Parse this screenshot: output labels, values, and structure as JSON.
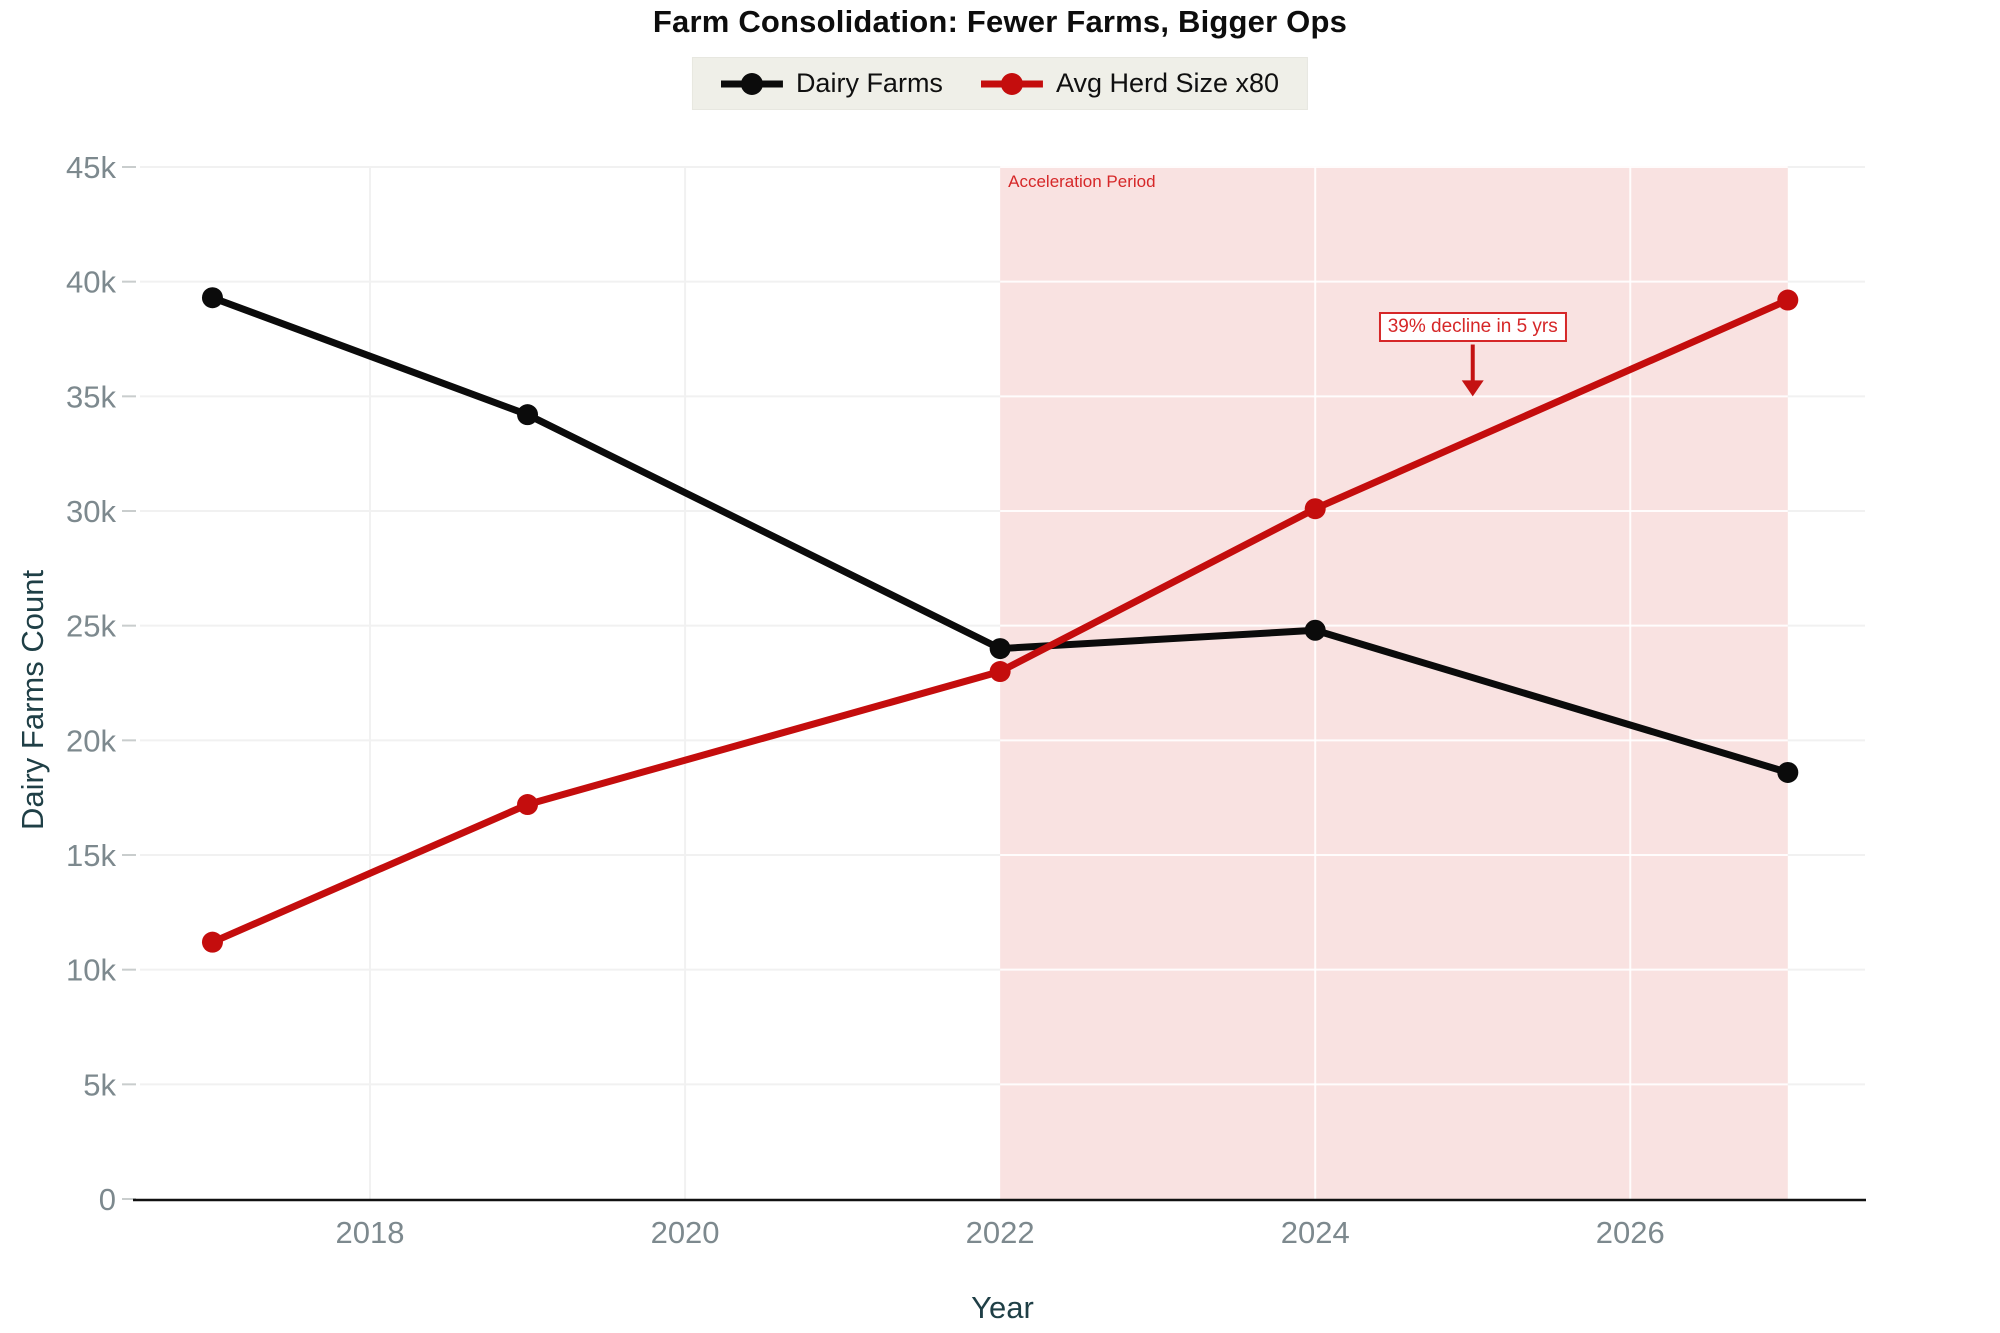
{
  "title": "Farm Consolidation: Fewer Farms, Bigger Ops",
  "chart_data": {
    "type": "line",
    "title": "Farm Consolidation: Fewer Farms, Bigger Ops",
    "xlabel": "Year",
    "ylabel": "Dairy Farms Count",
    "x": [
      2017,
      2019,
      2022,
      2024,
      2027
    ],
    "series": [
      {
        "name": "Dairy Farms",
        "color": "#0b0b0b",
        "values": [
          39300,
          34200,
          24000,
          24800,
          18600
        ]
      },
      {
        "name": "Avg Herd Size x80",
        "color": "#c40d0d",
        "values": [
          11200,
          17200,
          23000,
          30100,
          39200
        ]
      }
    ],
    "xlim": [
      2016.54,
      2027.49
    ],
    "ylim": [
      0,
      45000
    ],
    "xticks": [
      {
        "value": 2018,
        "label": "2018"
      },
      {
        "value": 2020,
        "label": "2020"
      },
      {
        "value": 2022,
        "label": "2022"
      },
      {
        "value": 2024,
        "label": "2024"
      },
      {
        "value": 2026,
        "label": "2026"
      }
    ],
    "yticks": [
      {
        "value": 0,
        "label": "0"
      },
      {
        "value": 5000,
        "label": "5k"
      },
      {
        "value": 10000,
        "label": "10k"
      },
      {
        "value": 15000,
        "label": "15k"
      },
      {
        "value": 20000,
        "label": "20k"
      },
      {
        "value": 25000,
        "label": "25k"
      },
      {
        "value": 30000,
        "label": "30k"
      },
      {
        "value": 35000,
        "label": "35k"
      },
      {
        "value": 40000,
        "label": "40k"
      },
      {
        "value": 45000,
        "label": "45k"
      }
    ],
    "grid": true,
    "legend_position": "top-center",
    "span": {
      "x0": 2022,
      "x1": 2027,
      "label": "Acceleration Period",
      "fill": "#f9e2e1",
      "label_color": "#d62728"
    },
    "annotation": {
      "text": "39% decline in 5 yrs",
      "x": 2025,
      "y": 38000,
      "arrow_tip_y": 35000,
      "color": "#d62728",
      "arrow_color": "#c41212"
    }
  },
  "colors": {
    "background": "#ffffff",
    "grid_on_white": "#f1f1f1",
    "grid_on_band": "#ffffff",
    "tick_label": "#7d898e",
    "axis_title": "#1f3f46",
    "axis_line": "#111111",
    "tick_mark": "#c9cdcd",
    "legend_background": "#efefe8"
  }
}
